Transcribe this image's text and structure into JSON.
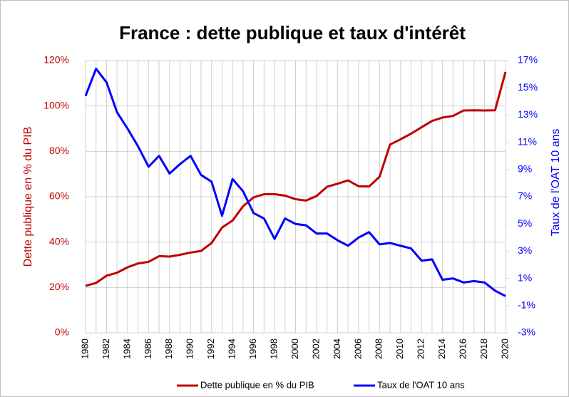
{
  "chart_data": {
    "type": "line",
    "title": "France : dette publique et taux d'intérêt",
    "ylabel": "Dette publique en % du PIB",
    "y2label": "Taux de l'OAT 10 ans",
    "categories": [
      "1980",
      null,
      "1982",
      null,
      "1984",
      null,
      "1986",
      null,
      "1988",
      null,
      "1990",
      null,
      "1992",
      null,
      "1994",
      null,
      "1996",
      null,
      "1998",
      null,
      "2000",
      null,
      "2002",
      null,
      "2004",
      null,
      "2006",
      null,
      "2008",
      null,
      "2010",
      null,
      "2012",
      null,
      "2014",
      null,
      "2016",
      null,
      "2018",
      null,
      "2020"
    ],
    "series": [
      {
        "name": "Dette publique en % du PIB",
        "color": "#c00000",
        "axis": "y",
        "values": [
          20.7,
          22,
          25.2,
          26.5,
          28.9,
          30.6,
          31.3,
          33.8,
          33.6,
          34.4,
          35.4,
          36.1,
          39.6,
          46.4,
          49.5,
          55.8,
          59.7,
          61.1,
          61.1,
          60.5,
          58.9,
          58.3,
          60.3,
          64.4,
          65.7,
          67.2,
          64.6,
          64.5,
          68.8,
          83,
          85.3,
          87.8,
          90.6,
          93.4,
          94.9,
          95.6,
          98,
          98.1,
          98,
          98.1,
          115
        ]
      },
      {
        "name": "Taux de l'OAT 10 ans",
        "color": "#0000ff",
        "axis": "y2",
        "values": [
          14.4,
          16.4,
          15.4,
          13.2,
          12.0,
          10.7,
          9.2,
          10.0,
          8.7,
          9.4,
          10.0,
          8.6,
          8.1,
          5.6,
          8.3,
          7.4,
          5.8,
          5.4,
          3.9,
          5.4,
          5.0,
          4.9,
          4.3,
          4.3,
          3.8,
          3.4,
          4.0,
          4.4,
          3.5,
          3.6,
          3.4,
          3.2,
          2.3,
          2.4,
          0.9,
          1.0,
          0.7,
          0.8,
          0.7,
          0.1,
          -0.3
        ]
      }
    ],
    "ylim": [
      0,
      120
    ],
    "yticks": [
      {
        "value": 0,
        "label": "0%"
      },
      {
        "value": 20,
        "label": "20%"
      },
      {
        "value": 40,
        "label": "40%"
      },
      {
        "value": 60,
        "label": "60%"
      },
      {
        "value": 80,
        "label": "80%"
      },
      {
        "value": 100,
        "label": "100%"
      },
      {
        "value": 120,
        "label": "120%"
      }
    ],
    "y2lim": [
      -3,
      17
    ],
    "y2ticks": [
      {
        "value": -3,
        "label": "-3%"
      },
      {
        "value": -1,
        "label": "-1%"
      },
      {
        "value": 1,
        "label": "1%"
      },
      {
        "value": 3,
        "label": "3%"
      },
      {
        "value": 5,
        "label": "5%"
      },
      {
        "value": 7,
        "label": "7%"
      },
      {
        "value": 9,
        "label": "9%"
      },
      {
        "value": 11,
        "label": "11%"
      },
      {
        "value": 13,
        "label": "13%"
      },
      {
        "value": 15,
        "label": "15%"
      },
      {
        "value": 17,
        "label": "17%"
      }
    ],
    "grid": true,
    "legend": "bottom"
  }
}
